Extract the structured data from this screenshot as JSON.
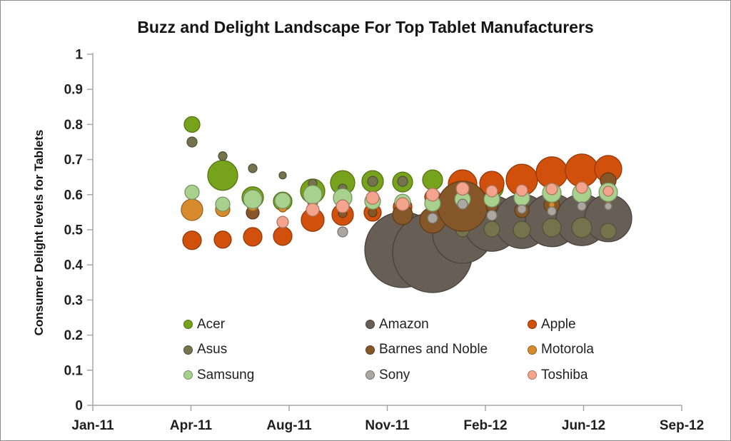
{
  "title": "Buzz and Delight Landscape For Top Tablet Manufacturers",
  "y_axis": {
    "title": "Consumer Delight levels for Tablets",
    "tick_labels": [
      "0",
      "0.1",
      "0.2",
      "0.3",
      "0.4",
      "0.5",
      "0.6",
      "0.7",
      "0.8",
      "0.9",
      "1"
    ],
    "min": 0,
    "max": 1
  },
  "x_axis": {
    "tick_labels": [
      "Jan-11",
      "Apr-11",
      "Aug-11",
      "Nov-11",
      "Feb-12",
      "Jun-12",
      "Sep-12"
    ]
  },
  "chart_data": {
    "type": "bubble",
    "title": "Buzz and Delight Landscape For Top Tablet Manufacturers",
    "xlabel": "",
    "ylabel": "Consumer Delight levels for Tablets",
    "ylim": [
      0,
      1
    ],
    "grid": false,
    "legend_position": "inside-bottom-left",
    "size_note": "bubble size = buzz volume (r = visual radius in px)",
    "months": [
      "Apr-11",
      "May-11",
      "Jun-11",
      "Jul-11",
      "Aug-11",
      "Sep-11",
      "Oct-11",
      "Nov-11",
      "Dec-11",
      "Jan-12",
      "Feb-12",
      "Mar-12",
      "Apr-12",
      "May-12",
      "Jun-12"
    ],
    "series": [
      {
        "name": "Acer",
        "color": "#76A21C",
        "points": [
          {
            "m": 0,
            "v": 0.8,
            "r": 11
          },
          {
            "m": 1,
            "v": 0.655,
            "r": 21
          },
          {
            "m": 2,
            "v": 0.592,
            "r": 15
          },
          {
            "m": 3,
            "v": 0.581,
            "r": 13
          },
          {
            "m": 4,
            "v": 0.61,
            "r": 17
          },
          {
            "m": 5,
            "v": 0.634,
            "r": 17
          },
          {
            "m": 6,
            "v": 0.638,
            "r": 15
          },
          {
            "m": 7,
            "v": 0.636,
            "r": 14
          },
          {
            "m": 8,
            "v": 0.642,
            "r": 14
          },
          {
            "m": 10,
            "v": 0.62,
            "r": 16
          },
          {
            "m": 11,
            "v": 0.627,
            "r": 12
          }
        ]
      },
      {
        "name": "Amazon",
        "color": "#675E55",
        "points": [
          {
            "m": 7,
            "v": 0.443,
            "r": 53
          },
          {
            "m": 8,
            "v": 0.435,
            "r": 56
          },
          {
            "m": 9,
            "v": 0.49,
            "r": 42
          },
          {
            "m": 10,
            "v": 0.518,
            "r": 39
          },
          {
            "m": 11,
            "v": 0.524,
            "r": 38
          },
          {
            "m": 12,
            "v": 0.527,
            "r": 37
          },
          {
            "m": 13,
            "v": 0.528,
            "r": 36
          },
          {
            "m": 14,
            "v": 0.533,
            "r": 33
          }
        ]
      },
      {
        "name": "Apple",
        "color": "#D0500C",
        "points": [
          {
            "m": 0,
            "v": 0.47,
            "r": 13
          },
          {
            "m": 1,
            "v": 0.472,
            "r": 12
          },
          {
            "m": 2,
            "v": 0.48,
            "r": 13
          },
          {
            "m": 3,
            "v": 0.482,
            "r": 13
          },
          {
            "m": 4,
            "v": 0.528,
            "r": 16
          },
          {
            "m": 5,
            "v": 0.543,
            "r": 15
          },
          {
            "m": 6,
            "v": 0.549,
            "r": 12
          },
          {
            "m": 7,
            "v": 0.565,
            "r": 13
          },
          {
            "m": 8,
            "v": 0.593,
            "r": 11
          },
          {
            "m": 9,
            "v": 0.63,
            "r": 20
          },
          {
            "m": 10,
            "v": 0.632,
            "r": 17
          },
          {
            "m": 11,
            "v": 0.642,
            "r": 22
          },
          {
            "m": 12,
            "v": 0.663,
            "r": 22
          },
          {
            "m": 13,
            "v": 0.669,
            "r": 23
          },
          {
            "m": 14,
            "v": 0.673,
            "r": 19
          }
        ]
      },
      {
        "name": "Asus",
        "color": "#74734E",
        "points": [
          {
            "m": 0,
            "v": 0.75,
            "r": 7
          },
          {
            "m": 1,
            "v": 0.71,
            "r": 6
          },
          {
            "m": 2,
            "v": 0.675,
            "r": 6
          },
          {
            "m": 3,
            "v": 0.655,
            "r": 5
          },
          {
            "m": 4,
            "v": 0.632,
            "r": 6
          },
          {
            "m": 5,
            "v": 0.618,
            "r": 6
          },
          {
            "m": 6,
            "v": 0.638,
            "r": 7
          },
          {
            "m": 7,
            "v": 0.638,
            "r": 7
          },
          {
            "m": 9,
            "v": 0.498,
            "r": 9
          },
          {
            "m": 10,
            "v": 0.502,
            "r": 11
          },
          {
            "m": 11,
            "v": 0.5,
            "r": 12
          },
          {
            "m": 12,
            "v": 0.506,
            "r": 13
          },
          {
            "m": 13,
            "v": 0.506,
            "r": 14
          },
          {
            "m": 14,
            "v": 0.496,
            "r": 11
          }
        ]
      },
      {
        "name": "Barnes and Noble",
        "color": "#855627",
        "points": [
          {
            "m": 2,
            "v": 0.549,
            "r": 9
          },
          {
            "m": 5,
            "v": 0.547,
            "r": 6
          },
          {
            "m": 6,
            "v": 0.549,
            "r": 6
          },
          {
            "m": 7,
            "v": 0.543,
            "r": 14
          },
          {
            "m": 8,
            "v": 0.527,
            "r": 18
          },
          {
            "m": 9,
            "v": 0.567,
            "r": 35
          },
          {
            "m": 10,
            "v": 0.567,
            "r": 8
          },
          {
            "m": 11,
            "v": 0.555,
            "r": 10
          },
          {
            "m": 12,
            "v": 0.571,
            "r": 11
          },
          {
            "m": 14,
            "v": 0.64,
            "r": 11
          }
        ]
      },
      {
        "name": "Motorola",
        "color": "#D78B2C",
        "points": [
          {
            "m": 0,
            "v": 0.557,
            "r": 15
          },
          {
            "m": 1,
            "v": 0.558,
            "r": 10
          },
          {
            "m": 2,
            "v": 0.57,
            "r": 8
          },
          {
            "m": 3,
            "v": 0.563,
            "r": 6
          },
          {
            "m": 4,
            "v": 0.578,
            "r": 7
          },
          {
            "m": 12,
            "v": 0.571,
            "r": 4
          },
          {
            "m": 14,
            "v": 0.573,
            "r": 4
          }
        ]
      },
      {
        "name": "Samsung",
        "color": "#A9D18E",
        "points": [
          {
            "m": 0,
            "v": 0.607,
            "r": 10
          },
          {
            "m": 1,
            "v": 0.573,
            "r": 10
          },
          {
            "m": 2,
            "v": 0.587,
            "r": 13
          },
          {
            "m": 3,
            "v": 0.583,
            "r": 11
          },
          {
            "m": 4,
            "v": 0.6,
            "r": 13
          },
          {
            "m": 5,
            "v": 0.591,
            "r": 13
          },
          {
            "m": 6,
            "v": 0.581,
            "r": 11
          },
          {
            "m": 7,
            "v": 0.579,
            "r": 11
          },
          {
            "m": 8,
            "v": 0.575,
            "r": 11
          },
          {
            "m": 9,
            "v": 0.587,
            "r": 11
          },
          {
            "m": 10,
            "v": 0.587,
            "r": 11
          },
          {
            "m": 11,
            "v": 0.591,
            "r": 11
          },
          {
            "m": 12,
            "v": 0.605,
            "r": 13
          },
          {
            "m": 13,
            "v": 0.604,
            "r": 13
          },
          {
            "m": 14,
            "v": 0.607,
            "r": 13
          }
        ]
      },
      {
        "name": "Sony",
        "color": "#ABA69F",
        "points": [
          {
            "m": 5,
            "v": 0.494,
            "r": 7
          },
          {
            "m": 8,
            "v": 0.533,
            "r": 7
          },
          {
            "m": 9,
            "v": 0.573,
            "r": 7
          },
          {
            "m": 10,
            "v": 0.541,
            "r": 7
          },
          {
            "m": 11,
            "v": 0.559,
            "r": 6
          },
          {
            "m": 12,
            "v": 0.553,
            "r": 6
          },
          {
            "m": 13,
            "v": 0.567,
            "r": 6
          },
          {
            "m": 14,
            "v": 0.567,
            "r": 5
          }
        ]
      },
      {
        "name": "Toshiba",
        "color": "#F4A48C",
        "points": [
          {
            "m": 3,
            "v": 0.522,
            "r": 8
          },
          {
            "m": 4,
            "v": 0.557,
            "r": 9
          },
          {
            "m": 5,
            "v": 0.567,
            "r": 9
          },
          {
            "m": 6,
            "v": 0.591,
            "r": 9
          },
          {
            "m": 7,
            "v": 0.573,
            "r": 9
          },
          {
            "m": 8,
            "v": 0.6,
            "r": 9
          },
          {
            "m": 9,
            "v": 0.617,
            "r": 9
          },
          {
            "m": 10,
            "v": 0.61,
            "r": 8
          },
          {
            "m": 11,
            "v": 0.612,
            "r": 8
          },
          {
            "m": 12,
            "v": 0.616,
            "r": 8
          },
          {
            "m": 13,
            "v": 0.62,
            "r": 8
          },
          {
            "m": 14,
            "v": 0.61,
            "r": 7
          }
        ]
      }
    ]
  }
}
